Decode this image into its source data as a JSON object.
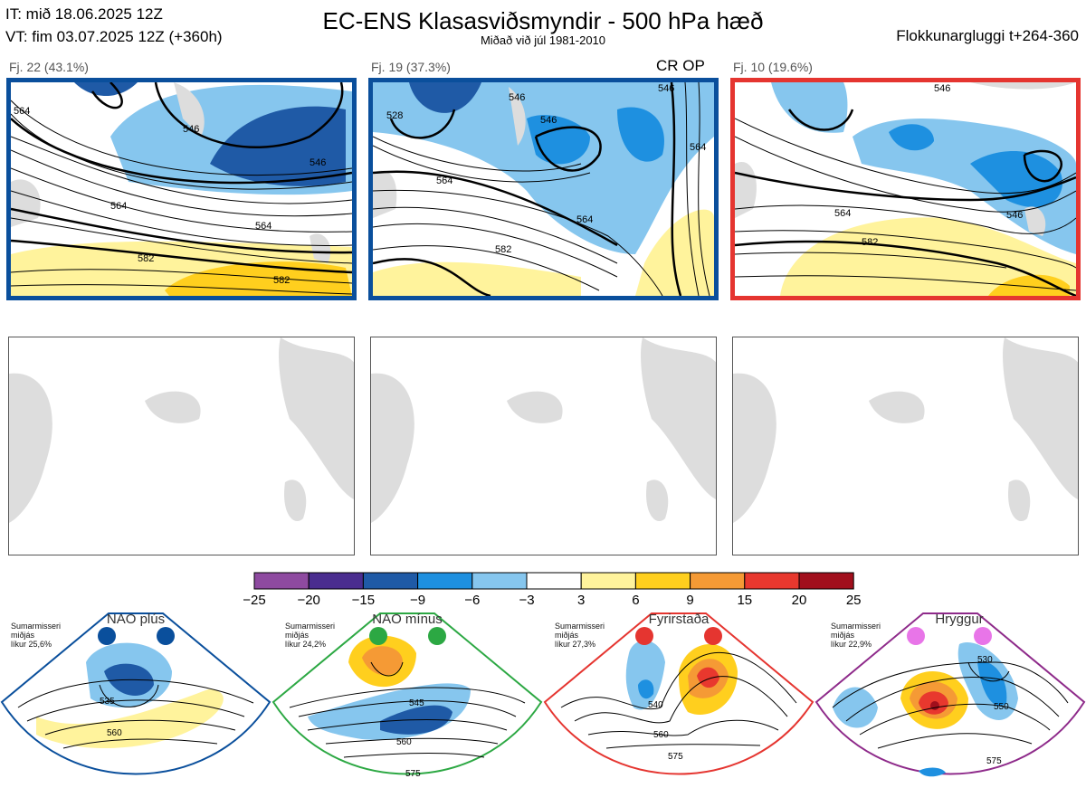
{
  "header": {
    "it_line": "IT: mið 18.06.2025 12Z",
    "vt_line": "VT: fim 03.07.2025 12Z  (+360h)",
    "title": "EC-ENS Klasasviðsmyndir - 500 hPa hæð",
    "subtitle": "Miðað við júl 1981-2010",
    "window": "Flokkunargluggi t+264-360"
  },
  "clusters": [
    {
      "label": "Fj. 22 (43.1%)",
      "border_color": "#0a4f9c",
      "contours": [
        "564",
        "546",
        "546",
        "564",
        "582",
        "582",
        "564"
      ]
    },
    {
      "label": "Fj. 19 (37.3%)",
      "border_color": "#0a4f9c",
      "contours": [
        "528",
        "546",
        "546",
        "564",
        "564",
        "582",
        "546",
        "564"
      ]
    },
    {
      "label": "Fj. 10 (19.6%)",
      "border_color": "#e53530",
      "contours": [
        "546",
        "564",
        "582",
        "546"
      ]
    }
  ],
  "cluster_flags": "CR OP",
  "colorbar": {
    "ticks": [
      "−25",
      "−20",
      "−15",
      "−9",
      "−6",
      "−3",
      "3",
      "6",
      "9",
      "15",
      "20",
      "25"
    ],
    "colors": [
      "#8e4aa0",
      "#4a2d8f",
      "#1f5aa6",
      "#1e90e0",
      "#86c6ee",
      "#ffffff",
      "#fff39c",
      "#ffcf1e",
      "#f59a35",
      "#e8382e",
      "#a10f1c"
    ]
  },
  "regimes": [
    {
      "name": "NAO plús",
      "season": "Sumarmisseri",
      "range": "miðjás",
      "prob": "líkur 25,6%",
      "border": "#0a4f9c",
      "dots": [
        "#0a4f9c",
        "#0a4f9c"
      ],
      "labels": [
        "535",
        "560"
      ]
    },
    {
      "name": "NAO mínus",
      "season": "Sumarmisseri",
      "range": "miðjás",
      "prob": "líkur 24,2%",
      "border": "#2ca843",
      "dots": [
        "#2ca843",
        "#2ca843"
      ],
      "labels": [
        "545",
        "560",
        "575"
      ]
    },
    {
      "name": "Fyrirstaða",
      "season": "Sumarmisseri",
      "range": "miðjás",
      "prob": "líkur 27,3%",
      "border": "#e53530",
      "dots": [
        "#e53530",
        "#e53530"
      ],
      "labels": [
        "540",
        "560",
        "575"
      ]
    },
    {
      "name": "Hryggur",
      "season": "Sumarmisseri",
      "range": "miðjás",
      "prob": "líkur 22,9%",
      "border": "#8e2a8a",
      "dots": [
        "#e875e8",
        "#e875e8"
      ],
      "labels": [
        "530",
        "550",
        "575"
      ]
    }
  ]
}
